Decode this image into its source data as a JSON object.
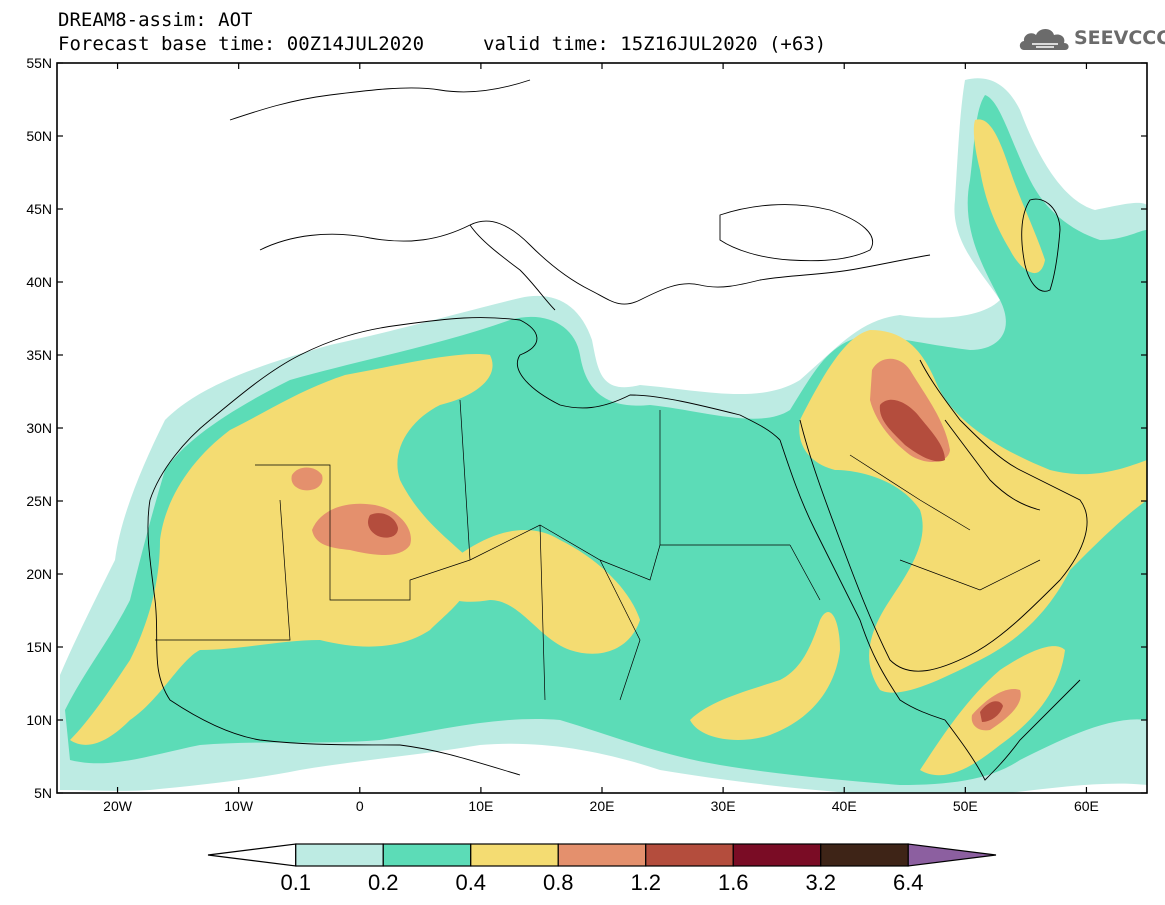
{
  "header": {
    "title": "DREAM8-assim: AOT",
    "base_time": "Forecast base time: 00Z14JUL2020",
    "valid_time": "valid time: 15Z16JUL2020 (+63)"
  },
  "logo": {
    "text": "SEEVCCC",
    "icon": "cloud-icon"
  },
  "map": {
    "lon_range": [
      -25,
      65
    ],
    "lat_range": [
      5,
      55
    ],
    "lon_ticks": [
      {
        "value": -20,
        "label": "20W"
      },
      {
        "value": -10,
        "label": "10W"
      },
      {
        "value": 0,
        "label": "0"
      },
      {
        "value": 10,
        "label": "10E"
      },
      {
        "value": 20,
        "label": "20E"
      },
      {
        "value": 30,
        "label": "30E"
      },
      {
        "value": 40,
        "label": "40E"
      },
      {
        "value": 50,
        "label": "50E"
      },
      {
        "value": 60,
        "label": "60E"
      }
    ],
    "lat_ticks": [
      {
        "value": 5,
        "label": "5N"
      },
      {
        "value": 10,
        "label": "10N"
      },
      {
        "value": 15,
        "label": "15N"
      },
      {
        "value": 20,
        "label": "20N"
      },
      {
        "value": 25,
        "label": "25N"
      },
      {
        "value": 30,
        "label": "30N"
      },
      {
        "value": 35,
        "label": "35N"
      },
      {
        "value": 40,
        "label": "40N"
      },
      {
        "value": 45,
        "label": "45N"
      },
      {
        "value": 50,
        "label": "50N"
      },
      {
        "value": 55,
        "label": "55N"
      }
    ]
  },
  "colorbar": {
    "levels": [
      "0.1",
      "0.2",
      "0.4",
      "0.8",
      "1.2",
      "1.6",
      "3.2",
      "6.4"
    ],
    "colors": [
      "#ffffff",
      "#bdebe3",
      "#5cdcb7",
      "#f4dc72",
      "#e4906d",
      "#b44d3d",
      "#7a0c25",
      "#3e2417",
      "#8c5fa0"
    ]
  },
  "colors": {
    "aot_0_1": "#bdebe3",
    "aot_0_2": "#5cdcb7",
    "aot_0_4": "#f4dc72",
    "aot_0_8": "#e4906d",
    "aot_1_2": "#b44d3d",
    "aot_1_6": "#7a0c25"
  }
}
